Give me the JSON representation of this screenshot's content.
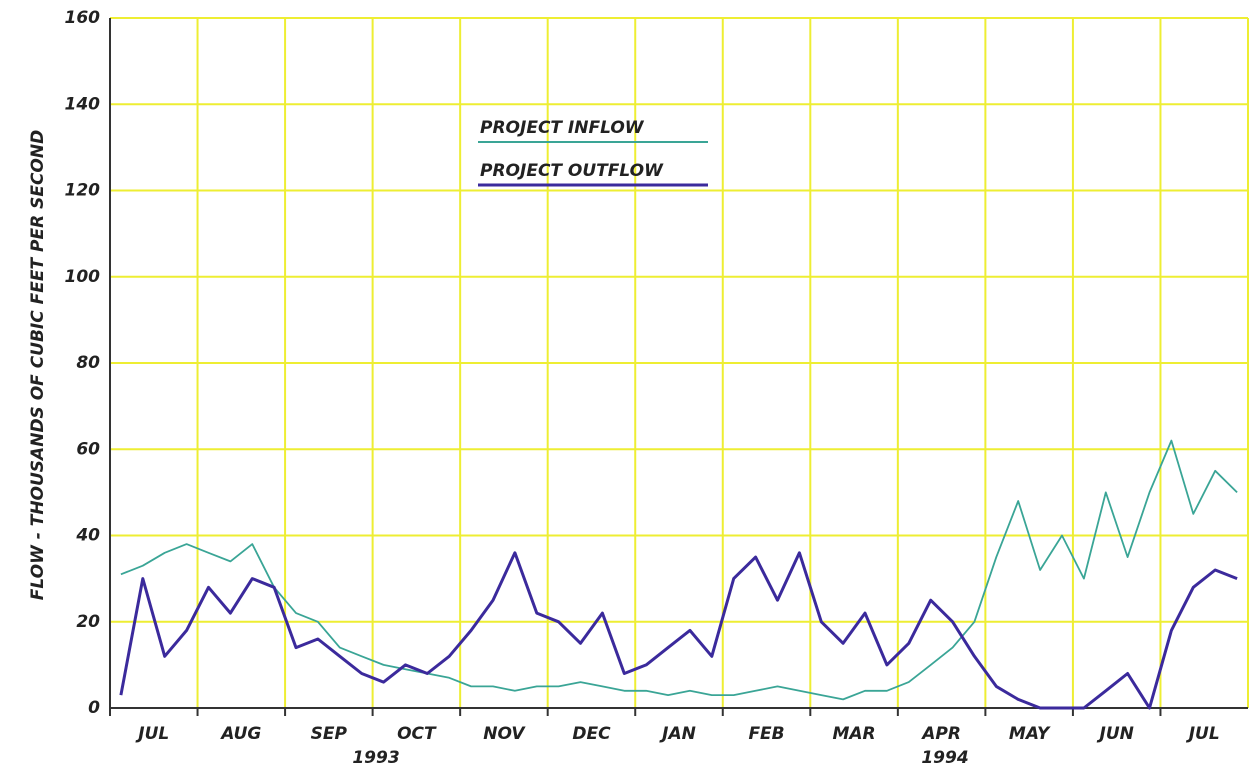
{
  "chart_data": {
    "type": "line",
    "y_label": "FLOW - THOUSANDS OF CUBIC FEET PER SECOND",
    "legend_items": [
      "PROJECT INFLOW",
      "PROJECT OUTFLOW"
    ],
    "categories": [
      null,
      null,
      "JUL",
      null,
      null,
      null,
      "AUG",
      null,
      null,
      null,
      "SEP",
      null,
      null,
      null,
      "OCT",
      null,
      null,
      null,
      "NOV",
      null,
      null,
      null,
      "DEC",
      null,
      null,
      null,
      "JAN",
      null,
      null,
      null,
      "FEB",
      null,
      null,
      null,
      "MAR",
      null,
      null,
      null,
      "APR",
      null,
      null,
      null,
      "MAY",
      null,
      null,
      null,
      "JUN",
      null,
      null,
      null,
      "JUL",
      null
    ],
    "annotations": [
      "1993",
      "1994"
    ],
    "series": [
      {
        "name": "PROJECT INFLOW",
        "color": "#3aa596",
        "values": [
          31,
          33,
          36,
          38,
          36,
          34,
          38,
          28,
          22,
          20,
          14,
          12,
          10,
          9,
          8,
          7,
          5,
          5,
          4,
          5,
          5,
          6,
          5,
          4,
          4,
          3,
          4,
          3,
          3,
          4,
          5,
          4,
          3,
          2,
          4,
          4,
          6,
          10,
          14,
          20,
          35,
          48,
          32,
          40,
          30,
          50,
          35,
          50,
          62,
          45,
          55,
          50
        ]
      },
      {
        "name": "PROJECT OUTFLOW",
        "color": "#3b2a9c",
        "values": [
          3,
          30,
          12,
          18,
          28,
          22,
          30,
          28,
          14,
          16,
          12,
          8,
          6,
          10,
          8,
          12,
          18,
          25,
          36,
          22,
          20,
          15,
          22,
          8,
          10,
          14,
          18,
          12,
          30,
          35,
          25,
          36,
          20,
          15,
          22,
          10,
          15,
          25,
          20,
          12,
          5,
          2,
          0,
          0,
          0,
          4,
          8,
          0,
          18,
          28,
          32,
          30
        ]
      }
    ],
    "ylim": [
      0,
      160
    ],
    "yticks": [
      0,
      20,
      40,
      60,
      80,
      100,
      120,
      140,
      160
    ],
    "grid": true
  }
}
